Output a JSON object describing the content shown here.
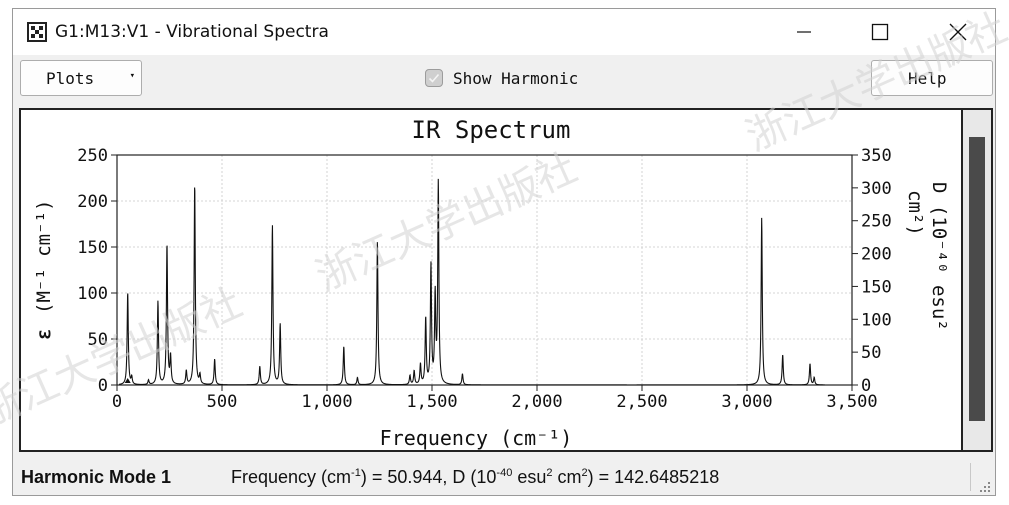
{
  "window": {
    "title": "G1:M13:V1 - Vibrational Spectra",
    "controls": {
      "minimize": "–",
      "maximize": "□",
      "close": "✕"
    }
  },
  "toolbar": {
    "plots_label": "Plots",
    "plots_arrow": "▾",
    "show_harmonic_label": "Show Harmonic",
    "show_harmonic_checked": true,
    "help_label": "Help"
  },
  "chart_data": {
    "type": "line",
    "title": "IR Spectrum",
    "xlabel": "Frequency (cm⁻¹)",
    "ylabel_left_symbol": "ε",
    "ylabel_left": "(M⁻¹ cm⁻¹)",
    "ylabel_right_line1": "D (10⁻⁴⁰ esu²",
    "ylabel_right_line2": "cm²)",
    "xlim": [
      0,
      3500
    ],
    "ylim_left": [
      0,
      250
    ],
    "ylim_right": [
      0,
      350
    ],
    "x_ticks": [
      0,
      500,
      1000,
      1500,
      2000,
      2500,
      3000,
      3500
    ],
    "x_tick_labels": [
      "0",
      "500",
      "1,000",
      "1,500",
      "2,000",
      "2,500",
      "3,000",
      "3,500"
    ],
    "y_left_ticks": [
      0,
      50,
      100,
      150,
      200,
      250
    ],
    "y_left_tick_labels": [
      "0",
      "50",
      "100",
      "150",
      "200",
      "250"
    ],
    "y_right_ticks": [
      0,
      50,
      100,
      150,
      200,
      250,
      300,
      350
    ],
    "y_right_tick_labels": [
      "0",
      "50",
      "100",
      "150",
      "200",
      "250",
      "300",
      "350"
    ],
    "grid": true,
    "series": [
      {
        "values_type": "lorentzian-peaks",
        "peaks": [
          {
            "x": 51,
            "y": 101
          },
          {
            "x": 70,
            "y": 8
          },
          {
            "x": 150,
            "y": 5
          },
          {
            "x": 195,
            "y": 91
          },
          {
            "x": 238,
            "y": 153
          },
          {
            "x": 255,
            "y": 30
          },
          {
            "x": 330,
            "y": 15
          },
          {
            "x": 370,
            "y": 219
          },
          {
            "x": 395,
            "y": 10
          },
          {
            "x": 465,
            "y": 28
          },
          {
            "x": 680,
            "y": 20
          },
          {
            "x": 740,
            "y": 174
          },
          {
            "x": 777,
            "y": 66
          },
          {
            "x": 1080,
            "y": 42
          },
          {
            "x": 1145,
            "y": 8
          },
          {
            "x": 1240,
            "y": 156
          },
          {
            "x": 1395,
            "y": 10
          },
          {
            "x": 1415,
            "y": 15
          },
          {
            "x": 1445,
            "y": 22
          },
          {
            "x": 1470,
            "y": 72
          },
          {
            "x": 1495,
            "y": 129
          },
          {
            "x": 1515,
            "y": 95
          },
          {
            "x": 1530,
            "y": 219
          },
          {
            "x": 1645,
            "y": 12
          },
          {
            "x": 3070,
            "y": 182
          },
          {
            "x": 3170,
            "y": 33
          },
          {
            "x": 3300,
            "y": 23
          },
          {
            "x": 3320,
            "y": 8
          }
        ]
      }
    ]
  },
  "status": {
    "mode_label": "Harmonic Mode 1",
    "freq_label": "Frequency (cm",
    "freq_exp": "-1",
    "freq_value_text": ") = 50.944, D (10",
    "d_exp": "-40",
    "d_unit_a": " esu",
    "d_exp2": "2",
    "d_unit_b": " cm",
    "d_exp3": "2",
    "d_value_text": ") = 142.6485218"
  },
  "watermark": "浙江大学出版社"
}
